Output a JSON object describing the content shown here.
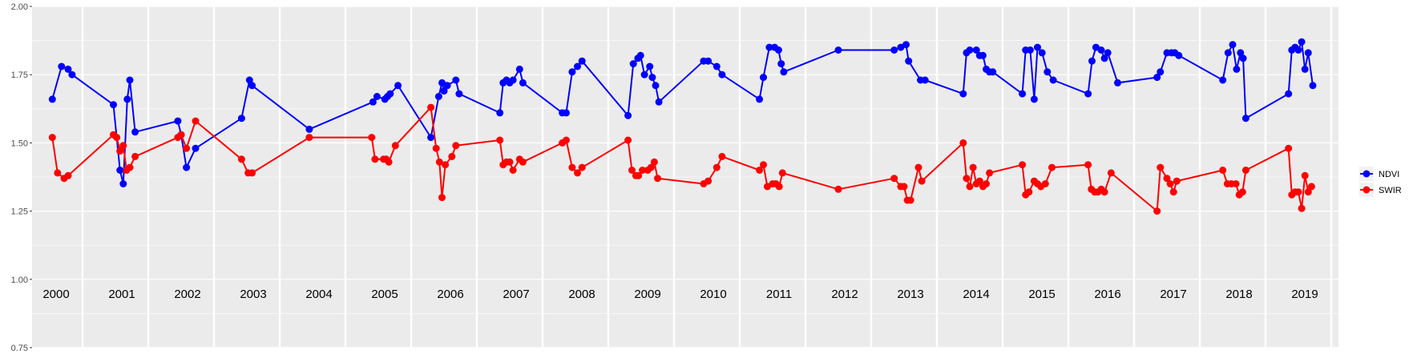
{
  "chart_data": {
    "type": "line",
    "title": "",
    "xlabel": "",
    "ylabel": "",
    "ylim": [
      0.75,
      2.0
    ],
    "yticks": [
      "0.75",
      "1.00",
      "1.25",
      "1.50",
      "1.75",
      "2.00"
    ],
    "ytick_values": [
      0.75,
      1.0,
      1.25,
      1.5,
      1.75,
      2.0
    ],
    "xlim": [
      2000,
      2020
    ],
    "years": [
      "2000",
      "2001",
      "2002",
      "2003",
      "2004",
      "2005",
      "2006",
      "2007",
      "2008",
      "2009",
      "2010",
      "2011",
      "2012",
      "2013",
      "2014",
      "2015",
      "2016",
      "2017",
      "2018",
      "2019"
    ],
    "grid": true,
    "legend_position": "right",
    "series": [
      {
        "name": "NDVI",
        "color": "#0000ff",
        "points": [
          [
            2000.04,
            1.66
          ],
          [
            2000.18,
            1.78
          ],
          [
            2000.28,
            1.77
          ],
          [
            2000.34,
            1.75
          ],
          [
            2000.97,
            1.64
          ],
          [
            2001.07,
            1.4
          ],
          [
            2001.12,
            1.35
          ],
          [
            2001.18,
            1.66
          ],
          [
            2001.22,
            1.73
          ],
          [
            2001.3,
            1.54
          ],
          [
            2001.95,
            1.58
          ],
          [
            2002.0,
            1.53
          ],
          [
            2002.08,
            1.41
          ],
          [
            2002.22,
            1.48
          ],
          [
            2002.92,
            1.59
          ],
          [
            2003.04,
            1.73
          ],
          [
            2003.08,
            1.71
          ],
          [
            2003.95,
            1.55
          ],
          [
            2004.92,
            1.65
          ],
          [
            2004.98,
            1.67
          ],
          [
            2005.1,
            1.66
          ],
          [
            2005.14,
            1.67
          ],
          [
            2005.18,
            1.68
          ],
          [
            2005.3,
            1.71
          ],
          [
            2005.8,
            1.52
          ],
          [
            2005.92,
            1.67
          ],
          [
            2005.97,
            1.72
          ],
          [
            2006.0,
            1.69
          ],
          [
            2006.05,
            1.71
          ],
          [
            2006.18,
            1.73
          ],
          [
            2006.23,
            1.68
          ],
          [
            2006.85,
            1.61
          ],
          [
            2006.9,
            1.72
          ],
          [
            2006.95,
            1.73
          ],
          [
            2007.0,
            1.72
          ],
          [
            2007.05,
            1.73
          ],
          [
            2007.15,
            1.77
          ],
          [
            2007.2,
            1.72
          ],
          [
            2007.8,
            1.61
          ],
          [
            2007.86,
            1.61
          ],
          [
            2007.95,
            1.76
          ],
          [
            2008.03,
            1.78
          ],
          [
            2008.1,
            1.8
          ],
          [
            2008.8,
            1.6
          ],
          [
            2008.88,
            1.79
          ],
          [
            2008.95,
            1.81
          ],
          [
            2008.99,
            1.82
          ],
          [
            2009.05,
            1.75
          ],
          [
            2009.13,
            1.78
          ],
          [
            2009.17,
            1.74
          ],
          [
            2009.22,
            1.71
          ],
          [
            2009.27,
            1.65
          ],
          [
            2009.95,
            1.8
          ],
          [
            2010.02,
            1.8
          ],
          [
            2010.15,
            1.78
          ],
          [
            2010.23,
            1.75
          ],
          [
            2010.8,
            1.66
          ],
          [
            2010.86,
            1.74
          ],
          [
            2010.95,
            1.85
          ],
          [
            2011.03,
            1.85
          ],
          [
            2011.09,
            1.84
          ],
          [
            2011.13,
            1.79
          ],
          [
            2011.17,
            1.76
          ],
          [
            2012.0,
            1.84
          ],
          [
            2012.85,
            1.84
          ],
          [
            2012.95,
            1.85
          ],
          [
            2013.03,
            1.86
          ],
          [
            2013.07,
            1.8
          ],
          [
            2013.25,
            1.73
          ],
          [
            2013.32,
            1.73
          ],
          [
            2013.9,
            1.68
          ],
          [
            2013.95,
            1.83
          ],
          [
            2014.0,
            1.84
          ],
          [
            2014.1,
            1.84
          ],
          [
            2014.15,
            1.82
          ],
          [
            2014.2,
            1.82
          ],
          [
            2014.25,
            1.77
          ],
          [
            2014.3,
            1.76
          ],
          [
            2014.35,
            1.76
          ],
          [
            2014.8,
            1.68
          ],
          [
            2014.85,
            1.84
          ],
          [
            2014.92,
            1.84
          ],
          [
            2014.98,
            1.66
          ],
          [
            2015.03,
            1.85
          ],
          [
            2015.1,
            1.83
          ],
          [
            2015.18,
            1.76
          ],
          [
            2015.27,
            1.73
          ],
          [
            2015.8,
            1.68
          ],
          [
            2015.86,
            1.8
          ],
          [
            2015.92,
            1.85
          ],
          [
            2016.0,
            1.84
          ],
          [
            2016.05,
            1.81
          ],
          [
            2016.1,
            1.83
          ],
          [
            2016.25,
            1.72
          ],
          [
            2016.85,
            1.74
          ],
          [
            2016.9,
            1.76
          ],
          [
            2017.0,
            1.83
          ],
          [
            2017.07,
            1.83
          ],
          [
            2017.12,
            1.83
          ],
          [
            2017.18,
            1.82
          ],
          [
            2017.85,
            1.73
          ],
          [
            2017.93,
            1.83
          ],
          [
            2018.0,
            1.86
          ],
          [
            2018.06,
            1.77
          ],
          [
            2018.12,
            1.83
          ],
          [
            2018.16,
            1.81
          ],
          [
            2018.2,
            1.59
          ],
          [
            2018.85,
            1.68
          ],
          [
            2018.9,
            1.84
          ],
          [
            2018.95,
            1.85
          ],
          [
            2019.0,
            1.84
          ],
          [
            2019.05,
            1.87
          ],
          [
            2019.1,
            1.77
          ],
          [
            2019.15,
            1.83
          ],
          [
            2019.22,
            1.71
          ]
        ]
      },
      {
        "name": "SWIR",
        "color": "#ff0000",
        "points": [
          [
            2000.04,
            1.52
          ],
          [
            2000.12,
            1.39
          ],
          [
            2000.22,
            1.37
          ],
          [
            2000.28,
            1.38
          ],
          [
            2000.97,
            1.53
          ],
          [
            2001.02,
            1.52
          ],
          [
            2001.07,
            1.47
          ],
          [
            2001.12,
            1.49
          ],
          [
            2001.17,
            1.4
          ],
          [
            2001.22,
            1.41
          ],
          [
            2001.3,
            1.45
          ],
          [
            2001.95,
            1.52
          ],
          [
            2002.0,
            1.53
          ],
          [
            2002.08,
            1.48
          ],
          [
            2002.22,
            1.58
          ],
          [
            2002.92,
            1.44
          ],
          [
            2003.02,
            1.39
          ],
          [
            2003.08,
            1.39
          ],
          [
            2003.95,
            1.52
          ],
          [
            2004.9,
            1.52
          ],
          [
            2004.95,
            1.44
          ],
          [
            2005.08,
            1.44
          ],
          [
            2005.12,
            1.44
          ],
          [
            2005.16,
            1.43
          ],
          [
            2005.26,
            1.49
          ],
          [
            2005.8,
            1.63
          ],
          [
            2005.88,
            1.48
          ],
          [
            2005.93,
            1.43
          ],
          [
            2005.97,
            1.3
          ],
          [
            2006.02,
            1.42
          ],
          [
            2006.12,
            1.45
          ],
          [
            2006.18,
            1.49
          ],
          [
            2006.85,
            1.51
          ],
          [
            2006.9,
            1.42
          ],
          [
            2006.95,
            1.43
          ],
          [
            2007.0,
            1.43
          ],
          [
            2007.05,
            1.4
          ],
          [
            2007.15,
            1.44
          ],
          [
            2007.2,
            1.43
          ],
          [
            2007.8,
            1.5
          ],
          [
            2007.86,
            1.51
          ],
          [
            2007.95,
            1.41
          ],
          [
            2008.03,
            1.39
          ],
          [
            2008.1,
            1.41
          ],
          [
            2008.8,
            1.51
          ],
          [
            2008.86,
            1.4
          ],
          [
            2008.92,
            1.38
          ],
          [
            2008.96,
            1.38
          ],
          [
            2009.02,
            1.4
          ],
          [
            2009.1,
            1.4
          ],
          [
            2009.15,
            1.41
          ],
          [
            2009.2,
            1.43
          ],
          [
            2009.25,
            1.37
          ],
          [
            2009.95,
            1.35
          ],
          [
            2010.02,
            1.36
          ],
          [
            2010.15,
            1.41
          ],
          [
            2010.23,
            1.45
          ],
          [
            2010.8,
            1.4
          ],
          [
            2010.86,
            1.42
          ],
          [
            2010.92,
            1.34
          ],
          [
            2011.0,
            1.35
          ],
          [
            2011.05,
            1.35
          ],
          [
            2011.1,
            1.34
          ],
          [
            2011.15,
            1.39
          ],
          [
            2012.0,
            1.33
          ],
          [
            2012.85,
            1.37
          ],
          [
            2012.95,
            1.34
          ],
          [
            2013.0,
            1.34
          ],
          [
            2013.05,
            1.29
          ],
          [
            2013.1,
            1.29
          ],
          [
            2013.22,
            1.41
          ],
          [
            2013.27,
            1.36
          ],
          [
            2013.9,
            1.5
          ],
          [
            2013.95,
            1.37
          ],
          [
            2014.0,
            1.34
          ],
          [
            2014.05,
            1.41
          ],
          [
            2014.1,
            1.35
          ],
          [
            2014.15,
            1.36
          ],
          [
            2014.2,
            1.34
          ],
          [
            2014.25,
            1.35
          ],
          [
            2014.3,
            1.39
          ],
          [
            2014.8,
            1.42
          ],
          [
            2014.85,
            1.31
          ],
          [
            2014.9,
            1.32
          ],
          [
            2014.98,
            1.36
          ],
          [
            2015.03,
            1.35
          ],
          [
            2015.08,
            1.34
          ],
          [
            2015.15,
            1.35
          ],
          [
            2015.25,
            1.41
          ],
          [
            2015.8,
            1.42
          ],
          [
            2015.85,
            1.33
          ],
          [
            2015.9,
            1.32
          ],
          [
            2015.95,
            1.32
          ],
          [
            2016.0,
            1.33
          ],
          [
            2016.05,
            1.32
          ],
          [
            2016.15,
            1.39
          ],
          [
            2016.85,
            1.25
          ],
          [
            2016.9,
            1.41
          ],
          [
            2017.0,
            1.37
          ],
          [
            2017.05,
            1.35
          ],
          [
            2017.1,
            1.32
          ],
          [
            2017.15,
            1.36
          ],
          [
            2017.85,
            1.4
          ],
          [
            2017.92,
            1.35
          ],
          [
            2017.98,
            1.35
          ],
          [
            2018.05,
            1.35
          ],
          [
            2018.1,
            1.31
          ],
          [
            2018.15,
            1.32
          ],
          [
            2018.2,
            1.4
          ],
          [
            2018.85,
            1.48
          ],
          [
            2018.9,
            1.31
          ],
          [
            2018.95,
            1.32
          ],
          [
            2019.0,
            1.32
          ],
          [
            2019.05,
            1.26
          ],
          [
            2019.1,
            1.38
          ],
          [
            2019.15,
            1.32
          ],
          [
            2019.2,
            1.34
          ]
        ]
      }
    ]
  }
}
